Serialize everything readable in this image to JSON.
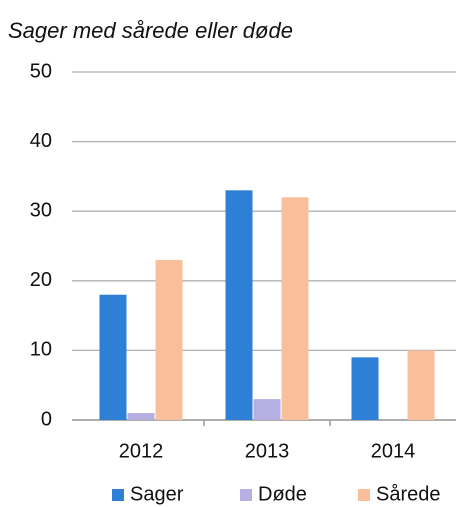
{
  "chart_data": {
    "type": "bar",
    "title": "Sager med sårede eller døde",
    "categories": [
      "2012",
      "2013",
      "2014"
    ],
    "series": [
      {
        "name": "Sager",
        "color": "#2e7fd6",
        "values": [
          18,
          33,
          9
        ]
      },
      {
        "name": "Døde",
        "color": "#b6b0e2",
        "values": [
          1,
          3,
          0
        ]
      },
      {
        "name": "Sårede",
        "color": "#f9bf9a",
        "values": [
          23,
          32,
          10
        ]
      }
    ],
    "ylim": [
      0,
      50
    ],
    "yticks": [
      0,
      10,
      20,
      30,
      40,
      50
    ],
    "grid": true,
    "legend": "bottom"
  }
}
